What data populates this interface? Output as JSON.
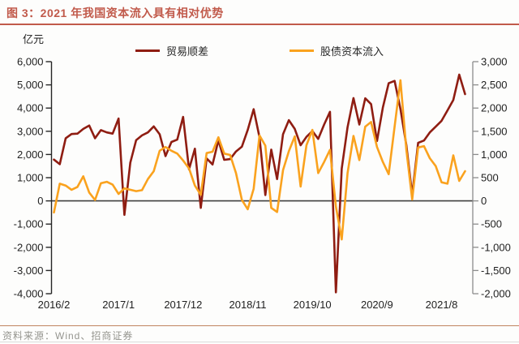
{
  "title": "图 3：2021 年我国资本流入具有相对优势",
  "unit_label": "亿元",
  "legend": {
    "items": [
      {
        "label": "贸易顺差",
        "color": "#8f1d12"
      },
      {
        "label": "股债资本流入",
        "color": "#faa21e"
      }
    ]
  },
  "footer": {
    "source_text": "资料来源：Wind、招商证券"
  },
  "colors": {
    "title": "#c15a4b",
    "title_rule": "#c15a4b",
    "trade_line": "#8f1d12",
    "flow_line": "#faa21e",
    "left_axis": "#262626",
    "right_axis": "#8c8c8c",
    "zero_line": "#3f3f3f",
    "tick_text": "#1f1f1f"
  },
  "chart_data": {
    "type": "line",
    "x": [
      "2016/2",
      "2016/3",
      "2016/4",
      "2016/5",
      "2016/6",
      "2016/7",
      "2016/8",
      "2016/9",
      "2016/10",
      "2016/11",
      "2016/12",
      "2017/1",
      "2017/2",
      "2017/3",
      "2017/4",
      "2017/5",
      "2017/6",
      "2017/7",
      "2017/8",
      "2017/9",
      "2017/10",
      "2017/11",
      "2017/12",
      "2018/1",
      "2018/2",
      "2018/3",
      "2018/4",
      "2018/5",
      "2018/6",
      "2018/7",
      "2018/8",
      "2018/9",
      "2018/10",
      "2018/11",
      "2018/12",
      "2019/1",
      "2019/2",
      "2019/3",
      "2019/4",
      "2019/5",
      "2019/6",
      "2019/7",
      "2019/8",
      "2019/9",
      "2019/10",
      "2019/11",
      "2019/12",
      "2020/1",
      "2020/2",
      "2020/3",
      "2020/4",
      "2020/5",
      "2020/6",
      "2020/7",
      "2020/8",
      "2020/9",
      "2020/10",
      "2020/11",
      "2020/12",
      "2021/1",
      "2021/2",
      "2021/3",
      "2021/4",
      "2021/5",
      "2021/6",
      "2021/7",
      "2021/8",
      "2021/9",
      "2021/10",
      "2021/11",
      "2021/12"
    ],
    "x_tick_indices": [
      0,
      11,
      22,
      33,
      44,
      55,
      66
    ],
    "x_tick_labels": [
      "2016/2",
      "2017/1",
      "2017/12",
      "2018/11",
      "2019/10",
      "2020/9",
      "2021/8"
    ],
    "series": [
      {
        "name": "贸易顺差",
        "axis": "left",
        "color": "#8f1d12",
        "values": [
          1780,
          1580,
          2700,
          2880,
          2900,
          3100,
          3250,
          2700,
          3050,
          2950,
          2900,
          3550,
          -600,
          1650,
          2620,
          2820,
          2950,
          3210,
          2870,
          1930,
          2540,
          2640,
          3620,
          1360,
          2250,
          -300,
          1830,
          1570,
          2610,
          1770,
          1800,
          2130,
          2340,
          3060,
          3950,
          2740,
          250,
          2210,
          940,
          2870,
          3480,
          3100,
          2400,
          2760,
          3010,
          2670,
          3290,
          3840,
          -3940,
          1390,
          3180,
          4430,
          3290,
          4420,
          4170,
          2580,
          4020,
          5070,
          5170,
          3960,
          2400,
          250,
          2500,
          2600,
          2950,
          3200,
          3450,
          3900,
          4350,
          5440,
          4600
        ]
      },
      {
        "name": "股债资本流入",
        "axis": "right",
        "color": "#faa21e",
        "values": [
          -250,
          370,
          330,
          240,
          300,
          530,
          180,
          20,
          380,
          410,
          350,
          150,
          270,
          240,
          210,
          230,
          470,
          640,
          1080,
          1160,
          1080,
          1020,
          870,
          700,
          330,
          130,
          1030,
          1060,
          1370,
          1020,
          990,
          600,
          20,
          -180,
          260,
          1410,
          1190,
          -150,
          -240,
          660,
          1070,
          1390,
          310,
          1200,
          1530,
          600,
          840,
          1100,
          -120,
          -830,
          600,
          1400,
          880,
          1600,
          1700,
          1160,
          840,
          575,
          1600,
          2600,
          1100,
          30,
          1150,
          1180,
          920,
          750,
          400,
          370,
          980,
          430,
          640
        ]
      }
    ],
    "left_axis": {
      "min": -4000,
      "max": 6000,
      "step": 1000,
      "tick_labels": [
        "6,000",
        "5,000",
        "4,000",
        "3,000",
        "2,000",
        "1,000",
        "0",
        "-1,000",
        "-2,000",
        "-3,000",
        "-4,000"
      ]
    },
    "right_axis": {
      "min": -2000,
      "max": 3000,
      "step": 500,
      "tick_labels": [
        "3,000",
        "2,500",
        "2,000",
        "1,500",
        "1,000",
        "500",
        "0",
        "-500",
        "-1,000",
        "-1,500",
        "-2,000"
      ]
    },
    "grid": false,
    "legend_position": "top"
  }
}
